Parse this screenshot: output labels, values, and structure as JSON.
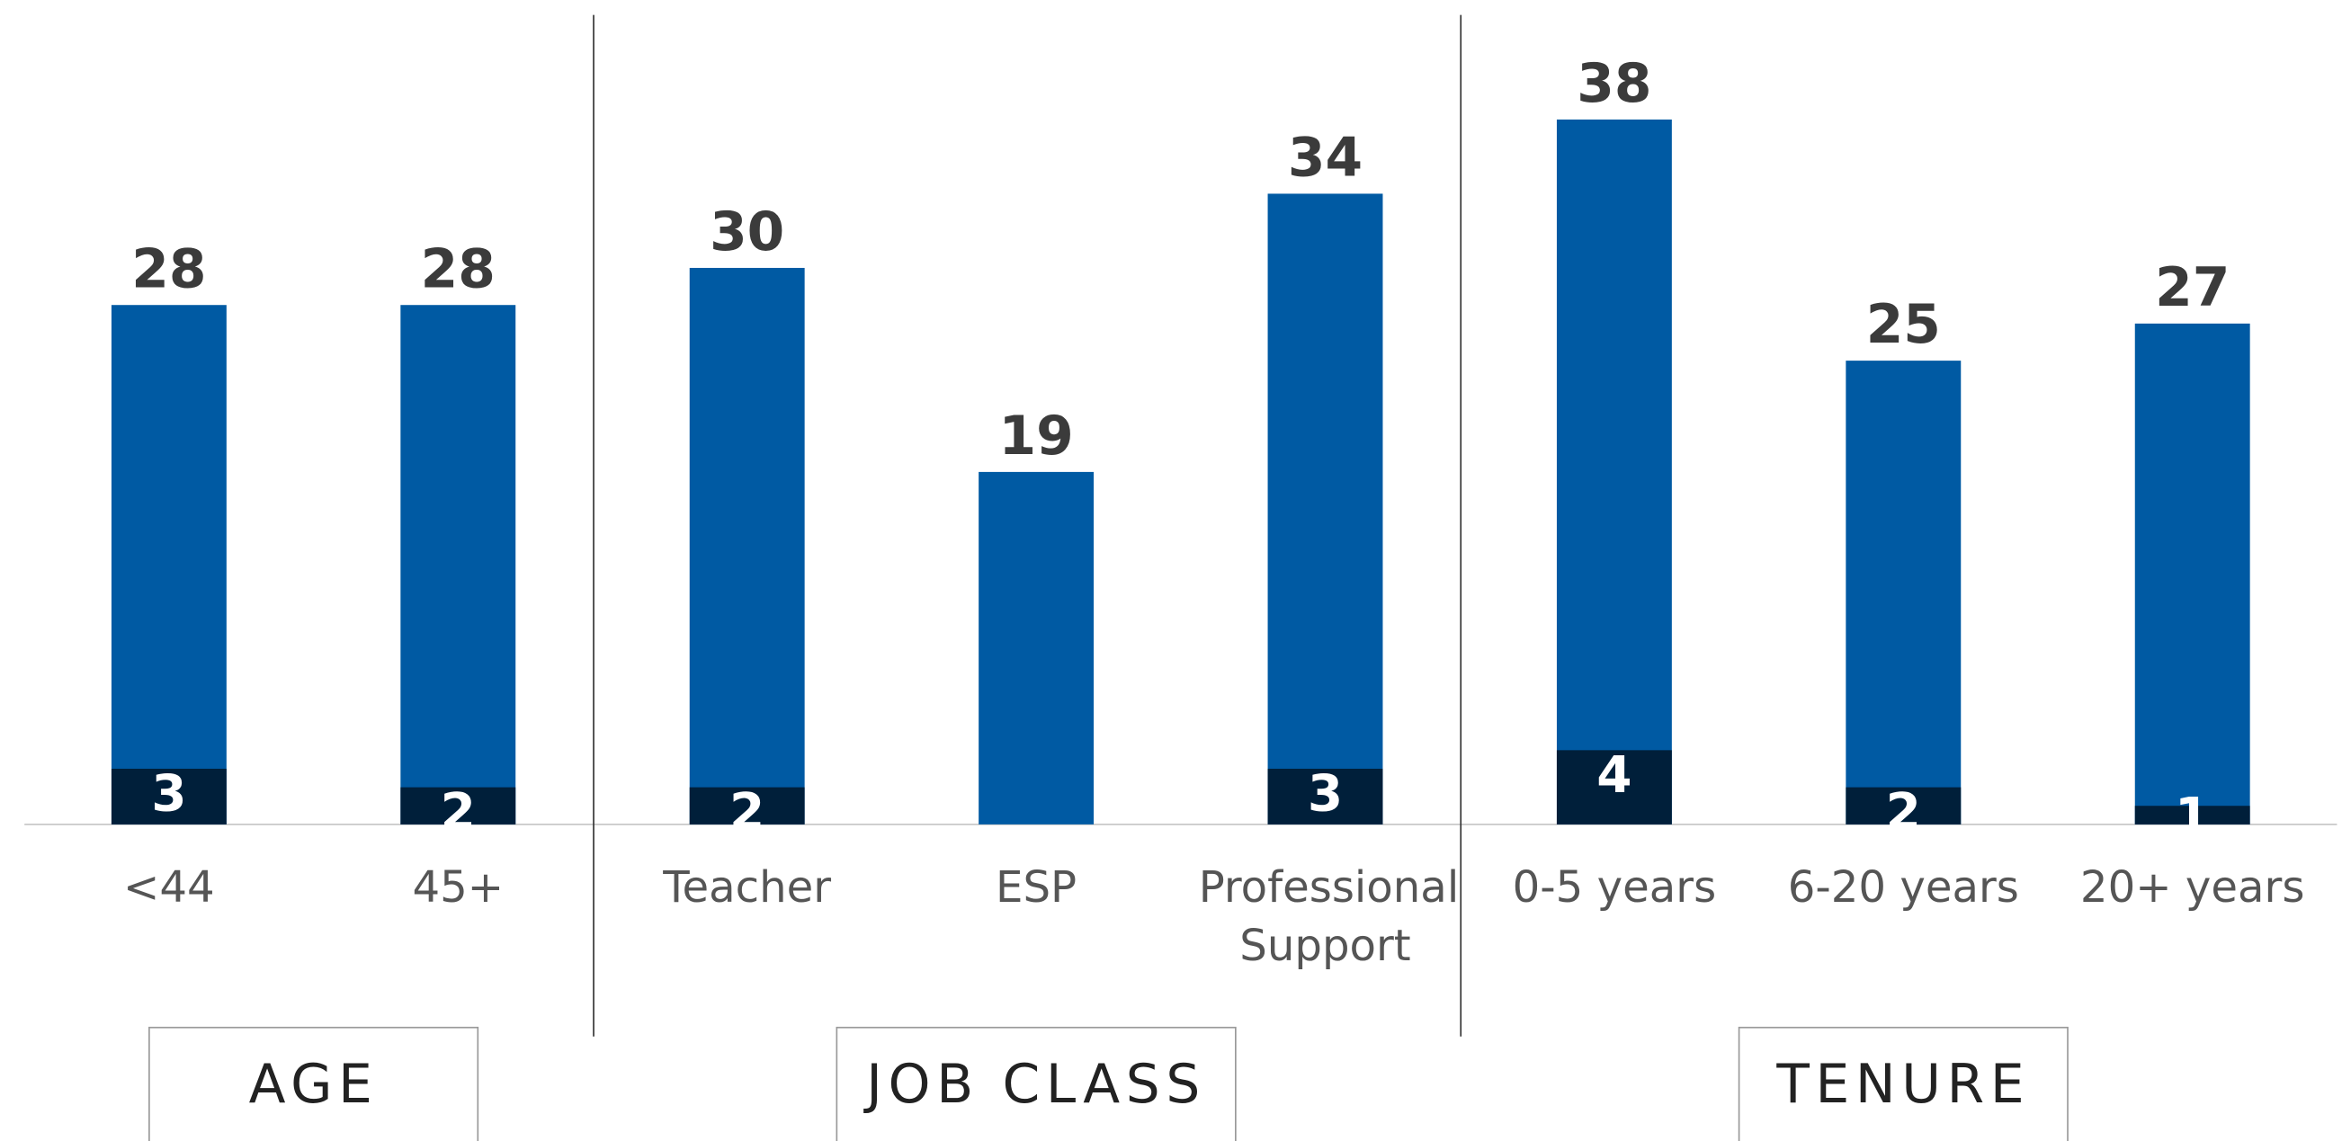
{
  "chart_data": {
    "type": "bar",
    "categories": [
      "<44",
      "45+",
      "Teacher",
      "ESP",
      "Professional Support",
      "0-5 years",
      "6-20 years",
      "20+ years"
    ],
    "series": [
      {
        "color": "#005aa3",
        "values": [
          28,
          28,
          30,
          19,
          34,
          38,
          25,
          27
        ]
      },
      {
        "color": "#001f3a",
        "values": [
          3,
          2,
          2,
          null,
          3,
          4,
          2,
          1
        ]
      }
    ],
    "groups": [
      "AGE",
      "JOB CLASS",
      "TENURE"
    ],
    "ylim": [
      0,
      44
    ]
  }
}
